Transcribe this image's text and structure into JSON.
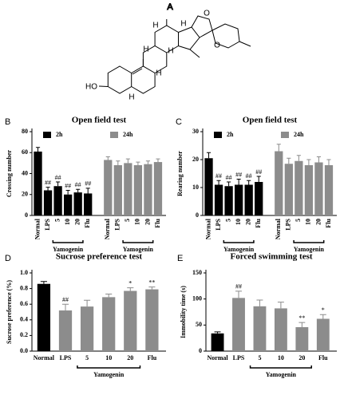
{
  "structure": {
    "label": "A",
    "atoms": [
      "H",
      "H",
      "H",
      "H",
      "H",
      "H",
      "O",
      "O",
      "HO"
    ]
  },
  "chart_data": [
    {
      "type": "bar",
      "panel": "B",
      "title": "Open field test",
      "y_label": "Crossing number",
      "ylim": [
        0,
        80
      ],
      "yticks": [
        0,
        20,
        40,
        60,
        80
      ],
      "bracket": "Yamogenin",
      "categories": [
        "Normal",
        "LPS",
        "5",
        "10",
        "20",
        "Flu"
      ],
      "series": [
        {
          "name": "2h",
          "color": "#000000",
          "values": [
            61,
            24,
            28,
            20,
            22,
            21
          ],
          "errors": [
            4,
            3,
            4,
            4,
            3,
            5
          ],
          "annotations": [
            null,
            "##",
            "##",
            "##",
            "##",
            "##"
          ]
        },
        {
          "name": "24h",
          "color": "#8c8c8c",
          "values": [
            53,
            48,
            50,
            48,
            49,
            51
          ],
          "errors": [
            3,
            4,
            4,
            3,
            3,
            3
          ],
          "annotations": [
            null,
            null,
            null,
            null,
            null,
            null
          ]
        }
      ]
    },
    {
      "type": "bar",
      "panel": "C",
      "title": "Open field test",
      "y_label": "Rearing number",
      "ylim": [
        0,
        30
      ],
      "yticks": [
        0,
        10,
        20,
        30
      ],
      "bracket": "Yamogenin",
      "categories": [
        "Normal",
        "LPS",
        "5",
        "10",
        "20",
        "Flu"
      ],
      "series": [
        {
          "name": "2h",
          "color": "#000000",
          "values": [
            20.5,
            11,
            10.5,
            11,
            11,
            12
          ],
          "errors": [
            2,
            1.5,
            1.5,
            2,
            1.5,
            2
          ],
          "annotations": [
            null,
            "##",
            "##",
            "##",
            "##",
            "##"
          ]
        },
        {
          "name": "24h",
          "color": "#8c8c8c",
          "values": [
            23,
            18.5,
            19.5,
            18,
            19,
            18
          ],
          "errors": [
            2.5,
            2,
            2,
            2,
            2,
            2
          ],
          "annotations": [
            null,
            null,
            null,
            null,
            null,
            null
          ]
        }
      ]
    },
    {
      "type": "bar",
      "panel": "D",
      "title": "Sucrose preference test",
      "y_label": "Sucrose preference (%)",
      "ylim": [
        0,
        1
      ],
      "yticks": [
        {
          "value": 0,
          "label": "0.0"
        },
        0.2,
        0.4,
        0.6,
        0.8,
        {
          "value": 1,
          "label": "1.0"
        }
      ],
      "bracket": "Yamogenin",
      "categories": [
        "Normal",
        "LPS",
        "5",
        "10",
        "20",
        "Flu"
      ],
      "values": [
        0.86,
        0.52,
        0.57,
        0.69,
        0.77,
        0.79
      ],
      "errors": [
        0.03,
        0.08,
        0.08,
        0.04,
        0.04,
        0.03
      ],
      "annotations": [
        null,
        "##",
        null,
        null,
        "*",
        "**"
      ],
      "colors": [
        "#000000",
        "#8c8c8c",
        "#8c8c8c",
        "#8c8c8c",
        "#8c8c8c",
        "#8c8c8c"
      ]
    },
    {
      "type": "bar",
      "panel": "E",
      "title": "Forced swimming test",
      "y_label": "Immobility time (s)",
      "ylim": [
        0,
        150
      ],
      "yticks": [
        0,
        50,
        100,
        150
      ],
      "bracket": "Yamogenin",
      "categories": [
        "Normal",
        "LPS",
        "5",
        "10",
        "20",
        "Flu"
      ],
      "values": [
        34,
        102,
        86,
        82,
        46,
        62
      ],
      "errors": [
        3,
        13,
        12,
        12,
        9,
        8
      ],
      "annotations": [
        null,
        "##",
        null,
        null,
        "**",
        "*"
      ],
      "colors": [
        "#000000",
        "#8c8c8c",
        "#8c8c8c",
        "#8c8c8c",
        "#8c8c8c",
        "#8c8c8c"
      ]
    }
  ]
}
